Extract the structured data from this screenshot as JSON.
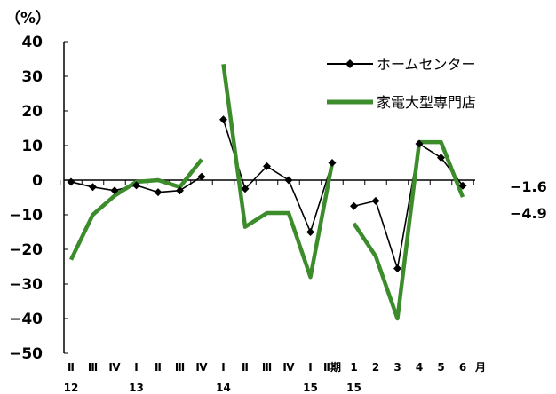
{
  "chart_data": {
    "type": "line",
    "unit_label": "（%）",
    "ylim": [
      -50,
      40
    ],
    "yticks": [
      40,
      30,
      20,
      10,
      0,
      -10,
      -20,
      -30,
      -40,
      -50
    ],
    "categories": [
      "Ⅱ",
      "Ⅲ",
      "Ⅳ",
      "Ⅰ",
      "Ⅱ",
      "Ⅲ",
      "Ⅳ",
      "Ⅰ",
      "Ⅱ",
      "Ⅲ",
      "Ⅳ",
      "Ⅰ",
      "Ⅱ期",
      "1",
      "2",
      "3",
      "4",
      "5",
      "6"
    ],
    "month_suffix": "月",
    "year_labels": [
      {
        "index": 0,
        "text": "12"
      },
      {
        "index": 3,
        "text": "13"
      },
      {
        "index": 7,
        "text": "14"
      },
      {
        "index": 11,
        "text": "15"
      },
      {
        "index": 13,
        "text": "15"
      }
    ],
    "series": [
      {
        "name": "ホームセンター",
        "color": "#000000",
        "marker": "diamond",
        "segments": [
          {
            "start": 0,
            "values": [
              -0.5,
              -2,
              -3,
              -1.5,
              -3.5,
              -3,
              1
            ]
          },
          {
            "start": 7,
            "values": [
              17.5,
              -2.5,
              4,
              0,
              -15,
              5
            ]
          },
          {
            "start": 13,
            "values": [
              -7.5,
              -6,
              -25.5,
              10.5,
              6.5,
              -1.6
            ]
          }
        ]
      },
      {
        "name": "家電大型専門店",
        "color": "#3c8c2c",
        "marker": "none",
        "segments": [
          {
            "start": 0,
            "values": [
              -23,
              -10,
              -4.5,
              -0.5,
              0,
              -2,
              6
            ]
          },
          {
            "start": 7,
            "values": [
              33.5,
              -13.5,
              -9.5,
              -9.5,
              -28,
              5
            ]
          },
          {
            "start": 13,
            "values": [
              -12.5,
              -22,
              -40,
              11,
              11,
              -4.9
            ]
          }
        ]
      }
    ],
    "end_labels": [
      "−1.6",
      "−4.9"
    ],
    "legend": [
      {
        "label": "ホームセンター"
      },
      {
        "label": "家電大型専門店"
      }
    ]
  }
}
